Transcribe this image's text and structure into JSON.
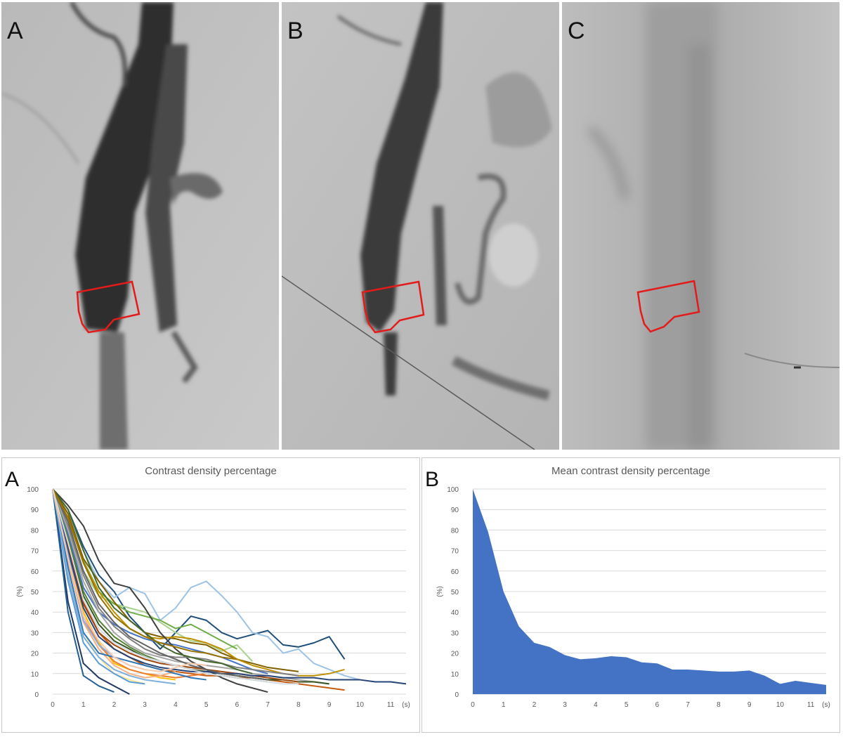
{
  "image_panels": [
    {
      "letter": "A",
      "description_icon": "angiogram-image"
    },
    {
      "letter": "B",
      "description_icon": "angiogram-image"
    },
    {
      "letter": "C",
      "description_icon": "angiogram-image"
    }
  ],
  "roi_color": "#e31b1b",
  "chart_data": [
    {
      "type": "line",
      "panel_letter": "A",
      "title": "Contrast density percentage",
      "xlabel": "(s)",
      "ylabel": "(%)",
      "xlim": [
        0,
        11.5
      ],
      "ylim": [
        0,
        100
      ],
      "x_ticks": [
        "0",
        "1",
        "2",
        "3",
        "4",
        "5",
        "6",
        "7",
        "8",
        "9",
        "10",
        "11"
      ],
      "y_ticks": [
        "0",
        "10",
        "20",
        "30",
        "40",
        "50",
        "60",
        "70",
        "80",
        "90",
        "100"
      ],
      "grid": true,
      "series": [
        {
          "color": "#1f4e79",
          "x": [
            0,
            0.5,
            1,
            1.5,
            2,
            2.5,
            3,
            3.5,
            4,
            4.5,
            5,
            5.5,
            6,
            6.5,
            7,
            7.5,
            8,
            8.5,
            9,
            9.5
          ],
          "y": [
            100,
            90,
            72,
            58,
            50,
            38,
            30,
            22,
            30,
            38,
            36,
            30,
            27,
            29,
            31,
            24,
            23,
            25,
            28,
            17
          ]
        },
        {
          "color": "#9dc3e6",
          "x": [
            0,
            0.5,
            1,
            1.5,
            2,
            2.5,
            3,
            3.5,
            4,
            4.5,
            5,
            5.5,
            6,
            6.5,
            7,
            7.5,
            8,
            8.5,
            9,
            9.5,
            10
          ],
          "y": [
            100,
            88,
            70,
            55,
            47,
            52,
            49,
            36,
            42,
            52,
            55,
            48,
            40,
            30,
            28,
            20,
            22,
            15,
            12,
            9,
            7
          ]
        },
        {
          "color": "#a9d18e",
          "x": [
            0,
            0.5,
            1,
            1.5,
            2,
            2.5,
            3,
            3.5,
            4,
            4.5,
            5,
            5.5,
            6,
            6.5
          ],
          "y": [
            100,
            80,
            60,
            48,
            44,
            42,
            40,
            35,
            30,
            26,
            25,
            21,
            24,
            16
          ]
        },
        {
          "color": "#70ad47",
          "x": [
            0,
            0.5,
            1,
            1.5,
            2,
            2.5,
            3,
            3.5,
            4,
            4.5,
            5,
            5.5,
            6
          ],
          "y": [
            100,
            85,
            65,
            50,
            44,
            40,
            38,
            36,
            32,
            34,
            30,
            26,
            22
          ]
        },
        {
          "color": "#806000",
          "x": [
            0,
            0.5,
            1,
            1.5,
            2,
            2.5,
            3,
            3.5,
            4,
            4.5,
            5,
            5.5,
            6,
            6.5,
            7,
            7.5,
            8
          ],
          "y": [
            100,
            88,
            66,
            55,
            45,
            36,
            30,
            28,
            27,
            25,
            24,
            20,
            17,
            15,
            13,
            12,
            11
          ]
        },
        {
          "color": "#bf9000",
          "x": [
            0,
            0.5,
            1,
            1.5,
            2,
            2.5,
            3,
            3.5,
            4,
            4.5,
            5,
            5.5,
            6,
            6.5,
            7,
            7.5,
            8,
            8.5,
            9,
            9.5
          ],
          "y": [
            100,
            86,
            64,
            50,
            40,
            32,
            28,
            27,
            28,
            27,
            25,
            22,
            17,
            14,
            12,
            10,
            9,
            9,
            10,
            12
          ]
        },
        {
          "color": "#ffc000",
          "x": [
            0,
            0.5,
            1,
            1.5,
            2,
            2.5,
            3,
            3.5,
            4
          ],
          "y": [
            100,
            70,
            40,
            25,
            15,
            12,
            10,
            8,
            7
          ]
        },
        {
          "color": "#ffe699",
          "x": [
            0,
            0.5,
            1,
            1.5,
            2,
            2.5,
            3
          ],
          "y": [
            100,
            60,
            30,
            18,
            10,
            7,
            5
          ]
        },
        {
          "color": "#c55a11",
          "x": [
            0,
            0.5,
            1,
            1.5,
            2,
            2.5,
            3,
            3.5,
            4,
            4.5,
            5,
            5.5,
            6,
            6.5,
            7,
            7.5,
            8,
            8.5,
            9,
            9.5
          ],
          "y": [
            100,
            75,
            45,
            30,
            22,
            18,
            14,
            12,
            11,
            10,
            9,
            9,
            8,
            8,
            7,
            6,
            5,
            4,
            3,
            2
          ]
        },
        {
          "color": "#ed7d31",
          "x": [
            0,
            0.5,
            1,
            1.5,
            2,
            2.5,
            3,
            3.5,
            4,
            4.5,
            5
          ],
          "y": [
            100,
            68,
            38,
            24,
            16,
            12,
            10,
            9,
            8,
            9,
            10
          ]
        },
        {
          "color": "#f4b183",
          "x": [
            0,
            0.5,
            1,
            1.5,
            2,
            2.5,
            3,
            3.5,
            4
          ],
          "y": [
            100,
            65,
            35,
            22,
            14,
            10,
            8,
            9,
            11
          ]
        },
        {
          "color": "#2e75b6",
          "x": [
            0,
            0.5,
            1,
            1.5,
            2,
            2.5,
            3,
            3.5,
            4,
            4.5,
            5
          ],
          "y": [
            100,
            62,
            30,
            20,
            18,
            16,
            14,
            12,
            10,
            8,
            7
          ]
        },
        {
          "color": "#5b9bd5",
          "x": [
            0,
            0.5,
            1,
            1.5,
            2,
            2.5,
            3
          ],
          "y": [
            100,
            55,
            25,
            15,
            10,
            6,
            5
          ]
        },
        {
          "color": "#4472c4",
          "x": [
            0,
            0.5,
            1,
            1.5,
            2,
            2.5,
            3,
            3.5,
            4,
            4.5,
            5,
            5.5,
            6,
            6.5,
            7
          ],
          "y": [
            100,
            78,
            52,
            40,
            34,
            30,
            27,
            25,
            24,
            22,
            20,
            18,
            15,
            12,
            10
          ]
        },
        {
          "color": "#203864",
          "x": [
            0,
            0.5,
            1,
            1.5,
            2,
            2.5
          ],
          "y": [
            100,
            45,
            15,
            8,
            4,
            0
          ]
        },
        {
          "color": "#404040",
          "x": [
            0,
            0.5,
            1,
            1.5,
            2,
            2.5,
            3,
            3.5,
            4,
            4.5,
            5,
            5.5,
            6,
            6.5,
            7
          ],
          "y": [
            100,
            92,
            82,
            65,
            54,
            52,
            42,
            30,
            22,
            16,
            12,
            8,
            5,
            3,
            1
          ]
        },
        {
          "color": "#7f7f7f",
          "x": [
            0,
            0.5,
            1,
            1.5,
            2,
            2.5,
            3,
            3.5,
            4,
            4.5,
            5,
            5.5,
            6,
            6.5,
            7,
            7.5,
            8
          ],
          "y": [
            100,
            82,
            58,
            42,
            33,
            27,
            22,
            19,
            18,
            18,
            17,
            15,
            13,
            12,
            11,
            10,
            9
          ]
        },
        {
          "color": "#a5a5a5",
          "x": [
            0,
            0.5,
            1,
            1.5,
            2,
            2.5,
            3,
            3.5,
            4,
            4.5,
            5,
            5.5,
            6,
            6.5,
            7,
            7.5,
            8,
            8.5,
            9
          ],
          "y": [
            100,
            80,
            55,
            40,
            30,
            24,
            20,
            18,
            16,
            15,
            14,
            13,
            12,
            10,
            9,
            8,
            7,
            6,
            5
          ]
        },
        {
          "color": "#548235",
          "x": [
            0,
            0.5,
            1,
            1.5,
            2,
            2.5,
            3,
            3.5,
            4,
            4.5,
            5,
            5.5,
            6,
            6.5,
            7
          ],
          "y": [
            100,
            76,
            50,
            36,
            28,
            23,
            19,
            16,
            14,
            12,
            10,
            9,
            8,
            7,
            6
          ]
        },
        {
          "color": "#375623",
          "x": [
            0,
            0.5,
            1,
            1.5,
            2,
            2.5,
            3,
            3.5,
            4,
            4.5,
            5,
            5.5,
            6,
            6.5,
            7,
            7.5,
            8,
            8.5,
            9
          ],
          "y": [
            100,
            74,
            48,
            34,
            26,
            22,
            18,
            16,
            14,
            12,
            11,
            10,
            9,
            8,
            7,
            7,
            6,
            6,
            5
          ]
        },
        {
          "color": "#9e480e",
          "x": [
            0,
            0.5,
            1,
            1.5,
            2,
            2.5,
            3,
            3.5,
            4,
            4.5,
            5,
            5.5,
            6,
            6.5,
            7,
            7.5,
            8
          ],
          "y": [
            100,
            72,
            44,
            30,
            24,
            20,
            17,
            15,
            14,
            13,
            12,
            11,
            10,
            9,
            8,
            7,
            6
          ]
        },
        {
          "color": "#264478",
          "x": [
            0,
            0.5,
            1,
            1.5,
            2,
            2.5,
            3,
            3.5,
            4,
            4.5,
            5,
            5.5,
            6,
            6.5,
            7,
            7.5,
            8,
            8.5,
            9,
            9.5,
            10,
            10.5,
            11,
            11.5
          ],
          "y": [
            100,
            70,
            42,
            28,
            22,
            18,
            15,
            13,
            12,
            11,
            11,
            10,
            10,
            9,
            9,
            8,
            8,
            8,
            7,
            7,
            7,
            6,
            6,
            5
          ]
        },
        {
          "color": "#8faadc",
          "x": [
            0,
            0.5,
            1,
            1.5,
            2,
            2.5,
            3
          ],
          "y": [
            100,
            68,
            36,
            24,
            18,
            14,
            12
          ]
        },
        {
          "color": "#636363",
          "x": [
            0,
            0.5,
            1,
            1.5,
            2,
            2.5,
            3,
            3.5,
            4,
            4.5,
            5,
            5.5,
            6,
            6.5,
            7
          ],
          "y": [
            100,
            84,
            60,
            44,
            35,
            28,
            24,
            20,
            17,
            14,
            12,
            10,
            9,
            8,
            7
          ]
        },
        {
          "color": "#43682b",
          "x": [
            0,
            0.5,
            1,
            1.5,
            2,
            2.5,
            3,
            3.5,
            4,
            4.5,
            5,
            5.5,
            6,
            6.5
          ],
          "y": [
            100,
            90,
            70,
            52,
            42,
            36,
            30,
            24,
            20,
            18,
            16,
            15,
            12,
            10
          ]
        },
        {
          "color": "#255e91",
          "x": [
            0,
            0.5,
            1,
            1.5,
            2
          ],
          "y": [
            100,
            40,
            9,
            4,
            1
          ]
        },
        {
          "color": "#7cafdd",
          "x": [
            0,
            0.5,
            1,
            1.5,
            2,
            2.5,
            3,
            3.5,
            4
          ],
          "y": [
            100,
            58,
            28,
            18,
            12,
            9,
            7,
            6,
            5
          ]
        },
        {
          "color": "#997300",
          "x": [
            0,
            0.5,
            1,
            1.5,
            2,
            2.5,
            3,
            3.5,
            4,
            4.5,
            5,
            5.5,
            6
          ],
          "y": [
            100,
            86,
            64,
            48,
            38,
            32,
            28,
            25,
            23,
            21,
            20,
            18,
            17
          ]
        },
        {
          "color": "#d6dce5",
          "x": [
            0,
            0.5,
            1,
            1.5,
            2,
            2.5,
            3,
            3.5,
            4,
            4.5,
            5,
            5.5,
            6,
            6.5,
            7,
            7.5,
            8
          ],
          "y": [
            100,
            74,
            46,
            32,
            25,
            21,
            18,
            16,
            14,
            12,
            10,
            9,
            8,
            7,
            6,
            5,
            5
          ]
        },
        {
          "color": "#f8cbad",
          "x": [
            0,
            0.5,
            1,
            1.5,
            2,
            2.5,
            3,
            3.5,
            4,
            4.5,
            5
          ],
          "y": [
            100,
            66,
            38,
            26,
            18,
            14,
            12,
            11,
            13,
            15,
            14
          ]
        }
      ]
    },
    {
      "type": "area",
      "panel_letter": "B",
      "title": "Mean contrast density percentage",
      "xlabel": "(s)",
      "ylabel": "(%)",
      "xlim": [
        0,
        11.5
      ],
      "ylim": [
        0,
        100
      ],
      "x_ticks": [
        "0",
        "1",
        "2",
        "3",
        "4",
        "5",
        "6",
        "7",
        "8",
        "9",
        "10",
        "11"
      ],
      "y_ticks": [
        "0",
        "10",
        "20",
        "30",
        "40",
        "50",
        "60",
        "70",
        "80",
        "90",
        "100"
      ],
      "grid": true,
      "color": "#4472c4",
      "x": [
        0,
        0.5,
        1,
        1.5,
        2,
        2.5,
        3,
        3.5,
        4,
        4.5,
        5,
        5.5,
        6,
        6.5,
        7,
        7.5,
        8,
        8.5,
        9,
        9.5,
        10,
        10.5,
        11,
        11.5
      ],
      "y": [
        100,
        79,
        50,
        33,
        25,
        23,
        19,
        17,
        17.5,
        18.5,
        18,
        15.5,
        15,
        12,
        12,
        11.5,
        11,
        11,
        11.5,
        9,
        5,
        6.5,
        5.5,
        4.5
      ]
    }
  ]
}
